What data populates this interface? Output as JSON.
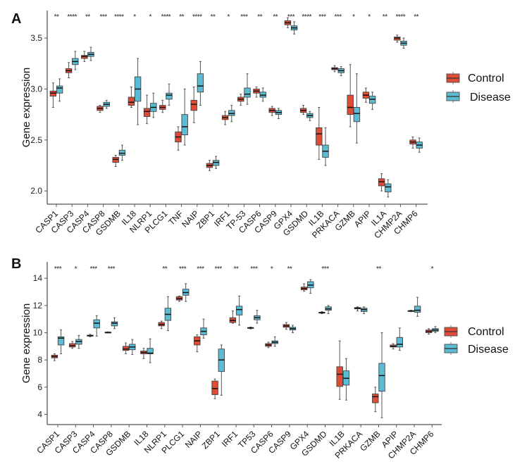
{
  "colors": {
    "control": "#e04b35",
    "disease": "#5bbcd3",
    "axis": "#555555",
    "whisker": "#555555",
    "median": "#111111"
  },
  "legend": {
    "items": [
      {
        "key": "control",
        "label": "Control"
      },
      {
        "key": "disease",
        "label": "Disease"
      }
    ]
  },
  "chart_data": [
    {
      "panel": "A",
      "type": "box",
      "ylabel": "Gene expression",
      "xlabel": "",
      "ylim": [
        1.87,
        3.77
      ],
      "yticks": [
        2.0,
        2.5,
        3.0,
        3.5
      ],
      "ytick_labels": [
        "2.0",
        "2.5",
        "3.0",
        "3.5"
      ],
      "legend_position": "right",
      "categories": [
        "CASP1",
        "CASP3",
        "CASP4",
        "CASP8",
        "GSDMB",
        "IL18",
        "NLRP1",
        "PLCG1",
        "TNF",
        "NAIP",
        "ZBP1",
        "IRF1",
        "TP-53",
        "CASP6",
        "CASP9",
        "GPX4",
        "GSDMD",
        "IL1B",
        "PRKACA",
        "GZMB",
        "APIP",
        "IL1A",
        "CHMP2A",
        "CHMP6"
      ],
      "significance": [
        "**",
        "****",
        "**",
        "***",
        "****",
        "*",
        "*",
        "****",
        "**",
        "****",
        "**",
        "*",
        "***",
        "**",
        "**",
        "***",
        "****",
        "***",
        "***",
        "*",
        "*",
        "**",
        "****",
        "**"
      ],
      "series": [
        {
          "name": "Control",
          "boxes": [
            [
              2.82,
              2.93,
              2.96,
              2.98,
              3.06
            ],
            [
              3.11,
              3.16,
              3.18,
              3.2,
              3.26
            ],
            [
              3.27,
              3.3,
              3.32,
              3.33,
              3.37
            ],
            [
              2.77,
              2.79,
              2.81,
              2.83,
              2.84
            ],
            [
              2.24,
              2.28,
              2.31,
              2.33,
              2.35
            ],
            [
              2.82,
              2.84,
              2.87,
              2.92,
              3.02
            ],
            [
              2.66,
              2.73,
              2.78,
              2.81,
              2.94
            ],
            [
              2.77,
              2.8,
              2.82,
              2.84,
              2.89
            ],
            [
              2.4,
              2.48,
              2.53,
              2.58,
              2.63
            ],
            [
              2.67,
              2.79,
              2.85,
              2.89,
              3.02
            ],
            [
              2.2,
              2.23,
              2.25,
              2.27,
              2.3
            ],
            [
              2.65,
              2.7,
              2.72,
              2.74,
              2.78
            ],
            [
              2.84,
              2.88,
              2.9,
              2.92,
              2.95
            ],
            [
              2.92,
              2.96,
              2.98,
              3.0,
              3.02
            ],
            [
              2.74,
              2.77,
              2.79,
              2.81,
              2.83
            ],
            [
              3.6,
              3.63,
              3.65,
              3.67,
              3.7
            ],
            [
              2.75,
              2.77,
              2.79,
              2.81,
              2.84
            ],
            [
              2.31,
              2.45,
              2.56,
              2.62,
              2.82
            ],
            [
              3.17,
              3.19,
              3.2,
              3.21,
              3.23
            ],
            [
              2.63,
              2.75,
              2.82,
              2.94,
              3.24
            ],
            [
              2.87,
              2.91,
              2.94,
              2.97,
              3.01
            ],
            [
              2.0,
              2.05,
              2.09,
              2.12,
              2.17
            ],
            [
              3.46,
              3.48,
              3.5,
              3.51,
              3.53
            ],
            [
              2.42,
              2.46,
              2.48,
              2.5,
              2.53
            ]
          ]
        },
        {
          "name": "Disease",
          "boxes": [
            [
              2.88,
              2.96,
              3.01,
              3.03,
              3.1
            ],
            [
              3.19,
              3.24,
              3.27,
              3.3,
              3.37
            ],
            [
              3.28,
              3.32,
              3.34,
              3.36,
              3.41
            ],
            [
              2.81,
              2.83,
              2.85,
              2.87,
              2.89
            ],
            [
              2.3,
              2.35,
              2.37,
              2.4,
              2.45
            ],
            [
              2.65,
              2.88,
              3.0,
              3.12,
              3.3
            ],
            [
              2.72,
              2.78,
              2.82,
              2.86,
              2.96
            ],
            [
              2.84,
              2.9,
              2.94,
              2.96,
              3.05
            ],
            [
              2.45,
              2.55,
              2.63,
              2.75,
              3.0
            ],
            [
              2.84,
              2.97,
              3.03,
              3.15,
              3.27
            ],
            [
              2.22,
              2.25,
              2.28,
              2.3,
              2.34
            ],
            [
              2.68,
              2.74,
              2.76,
              2.79,
              2.84
            ],
            [
              2.85,
              2.92,
              2.95,
              3.01,
              3.15
            ],
            [
              2.88,
              2.92,
              2.94,
              2.97,
              3.01
            ],
            [
              2.71,
              2.75,
              2.77,
              2.79,
              2.81
            ],
            [
              3.54,
              3.58,
              3.6,
              3.62,
              3.66
            ],
            [
              2.69,
              2.72,
              2.74,
              2.76,
              2.78
            ],
            [
              2.25,
              2.33,
              2.39,
              2.45,
              2.62
            ],
            [
              3.13,
              3.16,
              3.18,
              3.2,
              3.22
            ],
            [
              2.47,
              2.68,
              2.76,
              2.82,
              3.15
            ],
            [
              2.8,
              2.86,
              2.9,
              2.93,
              2.97
            ],
            [
              1.94,
              1.99,
              2.04,
              2.07,
              2.11
            ],
            [
              3.4,
              3.43,
              3.45,
              3.47,
              3.5
            ],
            [
              2.38,
              2.42,
              2.45,
              2.48,
              2.52
            ]
          ]
        }
      ]
    },
    {
      "panel": "B",
      "type": "box",
      "ylabel": "Gene expression",
      "xlabel": "",
      "ylim": [
        3.25,
        15.2
      ],
      "yticks": [
        4,
        6,
        8,
        10,
        12,
        14
      ],
      "ytick_labels": [
        "4",
        "6",
        "8",
        "10",
        "12",
        "14"
      ],
      "legend_position": "right",
      "categories": [
        "CASP1",
        "CASP3",
        "CASP4",
        "CASP8",
        "GSDMB",
        "IL18",
        "NLRP1",
        "PLCG1",
        "NAIP",
        "ZBP1",
        "IRF1",
        "TP53",
        "CASP6",
        "CASP9",
        "GPX4",
        "GSDMD",
        "IL1B",
        "PRKACA",
        "GZMB",
        "APIP",
        "CHMP2A",
        "CHMP6"
      ],
      "significance": [
        "***",
        "*",
        "***",
        "***",
        "",
        "",
        "**",
        "***",
        "***",
        "***",
        "**",
        "***",
        "*",
        "**",
        "",
        "***",
        "",
        "",
        "**",
        "",
        "",
        "*"
      ],
      "series": [
        {
          "name": "Control",
          "boxes": [
            [
              7.95,
              8.15,
              8.25,
              8.35,
              8.45
            ],
            [
              8.85,
              8.95,
              9.05,
              9.2,
              9.35
            ],
            [
              9.7,
              9.75,
              9.78,
              9.82,
              9.88
            ],
            [
              9.98,
              10.0,
              10.02,
              10.04,
              10.06
            ],
            [
              8.45,
              8.7,
              8.8,
              9.0,
              9.25
            ],
            [
              8.1,
              8.45,
              8.55,
              8.65,
              8.85
            ],
            [
              10.3,
              10.5,
              10.6,
              10.75,
              10.85
            ],
            [
              12.3,
              12.4,
              12.5,
              12.65,
              12.7
            ],
            [
              8.6,
              9.1,
              9.4,
              9.7,
              9.85
            ],
            [
              5.15,
              5.45,
              5.9,
              6.45,
              6.6
            ],
            [
              10.7,
              10.75,
              10.9,
              11.1,
              11.6
            ],
            [
              10.28,
              10.32,
              10.35,
              10.38,
              10.42
            ],
            [
              8.9,
              9.0,
              9.1,
              9.2,
              9.3
            ],
            [
              10.25,
              10.4,
              10.5,
              10.6,
              10.75
            ],
            [
              13.05,
              13.15,
              13.25,
              13.35,
              13.6
            ],
            [
              11.4,
              11.45,
              11.48,
              11.5,
              11.55
            ],
            [
              5.1,
              6.05,
              6.95,
              7.5,
              9.4
            ],
            [
              11.6,
              11.75,
              11.8,
              11.85,
              11.9
            ],
            [
              4.2,
              4.85,
              5.3,
              5.5,
              6.0
            ],
            [
              8.8,
              8.95,
              9.0,
              9.1,
              9.2
            ],
            [
              11.55,
              11.58,
              11.6,
              11.62,
              11.65
            ],
            [
              9.9,
              10.0,
              10.1,
              10.2,
              10.3
            ]
          ]
        },
        {
          "name": "Disease",
          "boxes": [
            [
              8.45,
              9.1,
              9.6,
              9.7,
              10.2
            ],
            [
              8.85,
              9.15,
              9.35,
              9.5,
              9.8
            ],
            [
              9.75,
              10.35,
              10.7,
              10.95,
              11.25
            ],
            [
              10.3,
              10.5,
              10.7,
              10.8,
              11.1
            ],
            [
              8.4,
              8.75,
              8.95,
              9.15,
              9.5
            ],
            [
              7.8,
              8.45,
              8.5,
              8.85,
              9.55
            ],
            [
              10.15,
              10.9,
              11.35,
              11.8,
              12.65
            ],
            [
              12.3,
              12.75,
              12.95,
              13.2,
              13.6
            ],
            [
              9.6,
              9.85,
              10.1,
              10.35,
              11.0
            ],
            [
              5.4,
              7.15,
              8.0,
              8.8,
              9.1
            ],
            [
              10.55,
              11.3,
              11.7,
              11.95,
              12.7
            ],
            [
              10.7,
              10.95,
              11.1,
              11.25,
              11.65
            ],
            [
              9.0,
              9.2,
              9.3,
              9.4,
              9.7
            ],
            [
              10.0,
              10.2,
              10.3,
              10.4,
              10.55
            ],
            [
              12.9,
              13.3,
              13.5,
              13.75,
              13.9
            ],
            [
              11.4,
              11.65,
              11.75,
              11.9,
              12.0
            ],
            [
              5.05,
              6.15,
              6.65,
              7.2,
              8.1
            ],
            [
              11.4,
              11.55,
              11.7,
              11.8,
              11.9
            ],
            [
              3.75,
              5.7,
              6.85,
              7.75,
              10.0
            ],
            [
              8.7,
              8.95,
              9.15,
              9.65,
              10.35
            ],
            [
              11.2,
              11.5,
              11.65,
              11.95,
              12.6
            ],
            [
              10.0,
              10.1,
              10.2,
              10.3,
              10.45
            ]
          ]
        }
      ]
    }
  ]
}
